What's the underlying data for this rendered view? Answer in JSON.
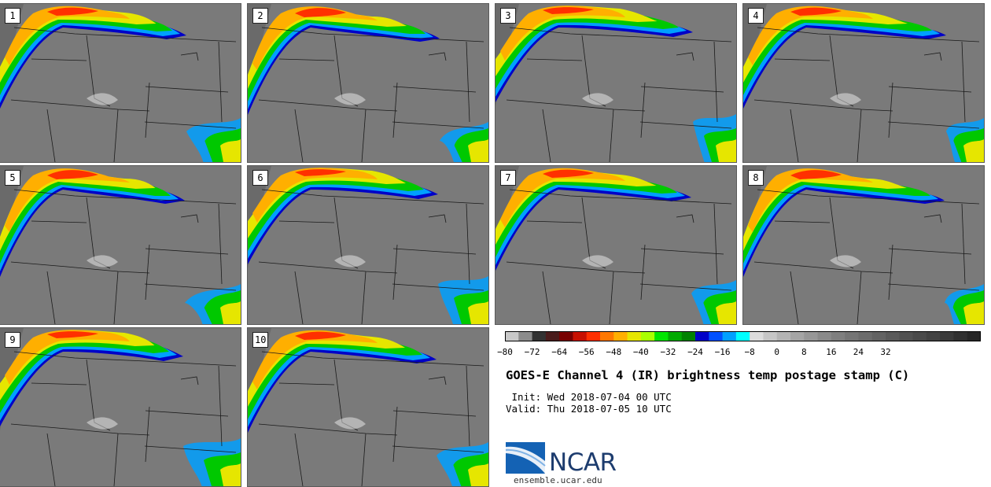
{
  "title": "GOES-E Channel 4 (IR) brightness temp postage stamp (C)",
  "init_line": " Init: Wed 2018-07-04 00 UTC",
  "valid_line": "Valid: Thu 2018-07-05 10 UTC",
  "panels": [
    "1",
    "2",
    "3",
    "4",
    "5",
    "6",
    "7",
    "8",
    "9",
    "10"
  ],
  "colorbar": {
    "ticks": [
      "−80",
      "−72",
      "−64",
      "−56",
      "−48",
      "−40",
      "−32",
      "−24",
      "−16",
      "−8",
      "0",
      "8",
      "16",
      "24",
      "32"
    ],
    "colors": [
      "#c8c8c8",
      "#8c8c8c",
      "#323232",
      "#4a1c1c",
      "#780000",
      "#c81000",
      "#ff3000",
      "#ff7800",
      "#ffaf00",
      "#e6e600",
      "#aaff00",
      "#00e600",
      "#00aa00",
      "#008200",
      "#0000c8",
      "#0050ff",
      "#00a0ff",
      "#00ffff",
      "#dcdcdc",
      "#c6c6c6",
      "#b4b4b4",
      "#a5a5a5",
      "#979797",
      "#8a8a8a",
      "#7f7f7f",
      "#757575",
      "#6c6c6c",
      "#636363",
      "#5a5a5a",
      "#525252",
      "#4a4a4a",
      "#424242",
      "#3a3a3a",
      "#303030",
      "#262626"
    ]
  },
  "logo": {
    "name": "NCAR",
    "url": "ensemble.ucar.edu"
  }
}
